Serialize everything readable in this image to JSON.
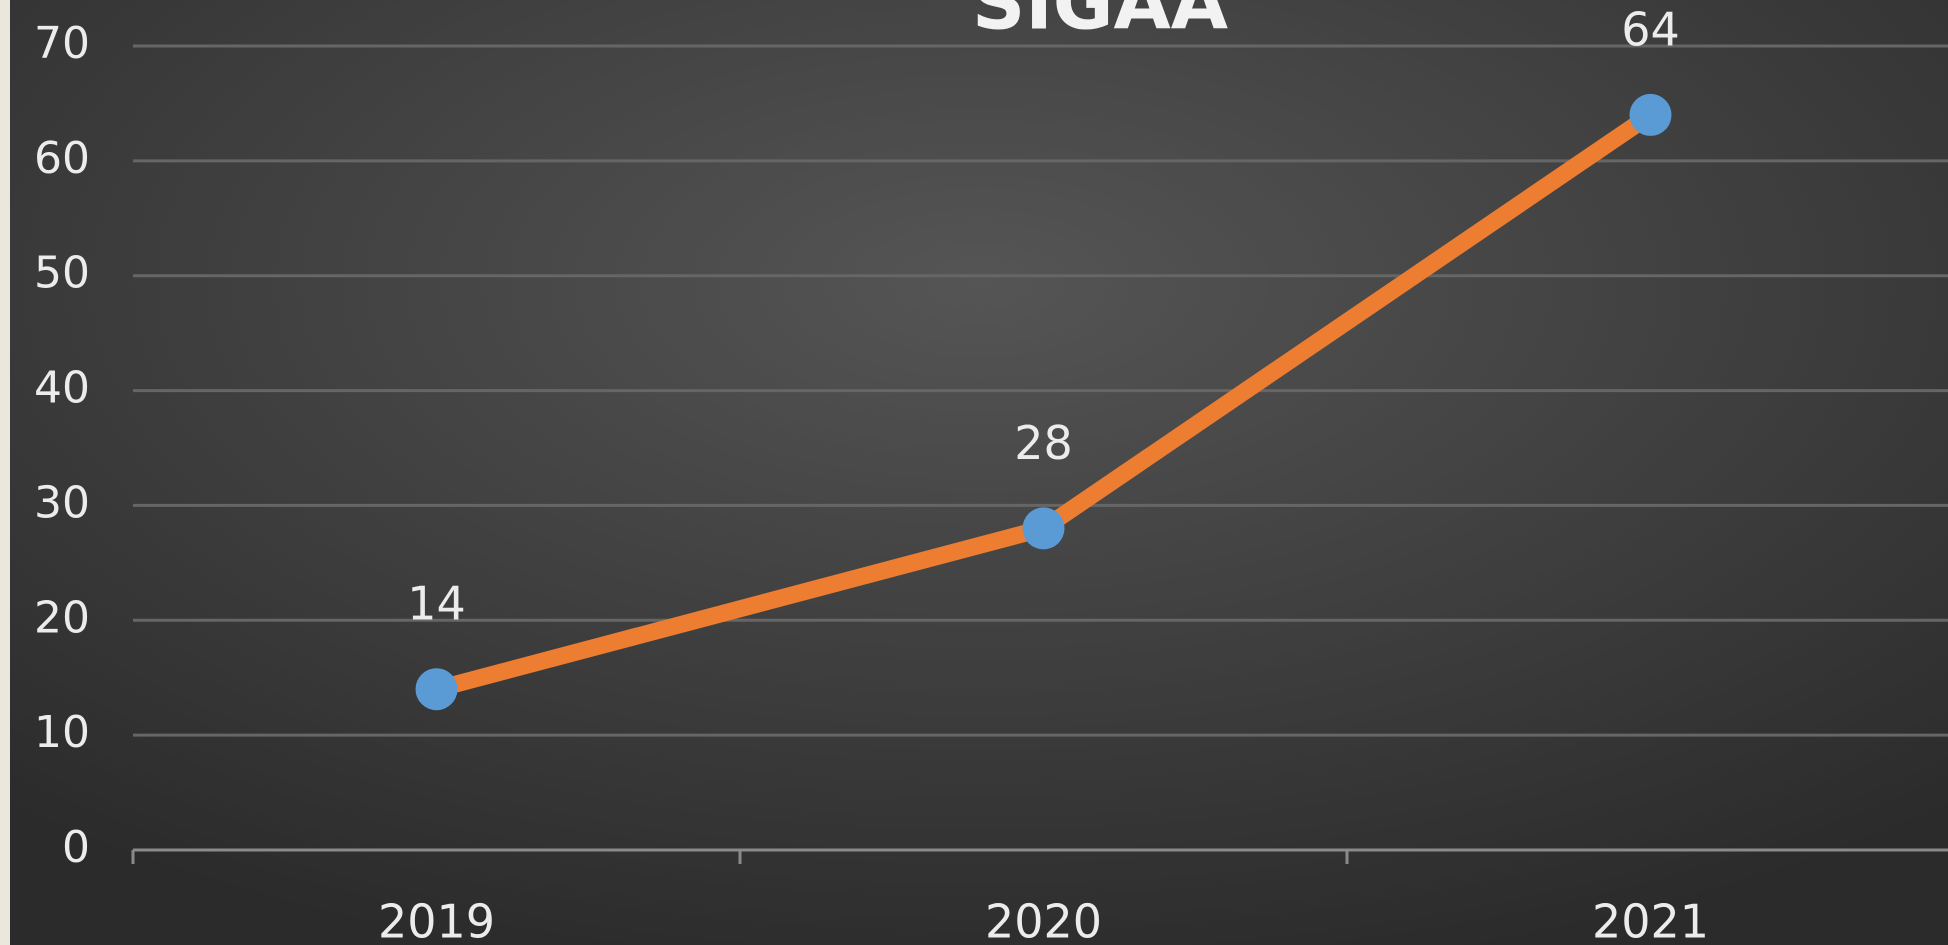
{
  "chart_data": {
    "type": "line",
    "title": "SIGAA",
    "categories": [
      "2019",
      "2020",
      "2021"
    ],
    "series": [
      {
        "values": [
          14,
          28,
          64
        ],
        "color": "#ed7d31",
        "marker_color": "#5b9bd5"
      }
    ],
    "ylim": [
      0,
      70
    ],
    "yticks": [
      0,
      10,
      20,
      30,
      40,
      50,
      60,
      70
    ],
    "grid": true,
    "data_labels": true
  }
}
